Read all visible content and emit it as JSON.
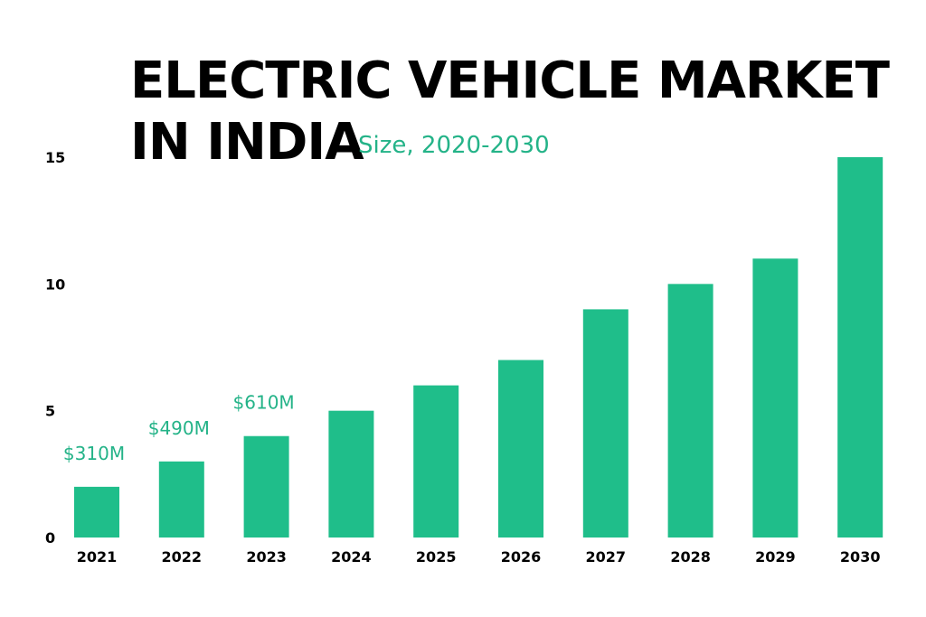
{
  "colors": {
    "bar": "#1fbe8a",
    "accent": "#24b388",
    "text": "#000000"
  },
  "chart_data": {
    "type": "bar",
    "title_lines": [
      "ELECTRIC VEHICLE MARKET",
      "IN INDIA"
    ],
    "subtitle": "Size, 2020-2030",
    "categories": [
      "2021",
      "2022",
      "2023",
      "2024",
      "2025",
      "2026",
      "2027",
      "2028",
      "2029",
      "2030"
    ],
    "values": [
      2,
      3,
      4,
      5,
      6,
      7,
      9,
      10,
      11,
      15
    ],
    "data_labels": [
      "$310M",
      "$490M",
      "$610M",
      "",
      "",
      "",
      "",
      "",
      "",
      ""
    ],
    "yticks": [
      0,
      5,
      10,
      15
    ],
    "ylim": [
      0,
      15
    ],
    "xlabel": "",
    "ylabel": "",
    "grid": false
  }
}
